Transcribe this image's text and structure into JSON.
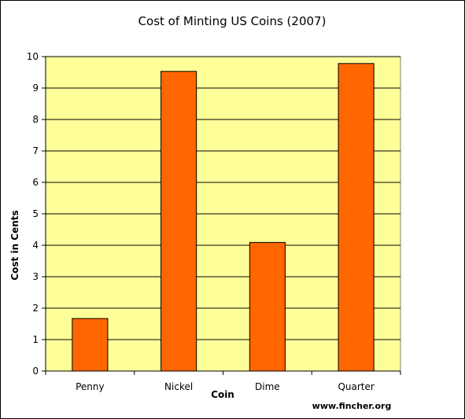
{
  "chart_data": {
    "type": "bar",
    "title": "Cost of Minting US Coins (2007)",
    "xlabel": "Coin",
    "ylabel": "Cost in Cents",
    "categories": [
      "Penny",
      "Nickel",
      "Dime",
      "Quarter"
    ],
    "values": [
      1.67,
      9.53,
      4.09,
      9.78
    ],
    "ylim": [
      0,
      10
    ],
    "yticks": [
      "0",
      "1",
      "2",
      "3",
      "4",
      "5",
      "6",
      "7",
      "8",
      "9",
      "10"
    ],
    "grid": true,
    "legend": "none",
    "colors": {
      "bar": "#ff6600",
      "bar_stroke": "#000000",
      "plot_background": "#ffff99",
      "gridline": "#000000"
    }
  },
  "footer": {
    "credit": "www.fincher.org"
  }
}
